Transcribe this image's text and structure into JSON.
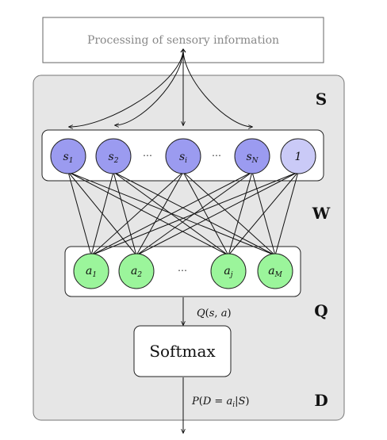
{
  "input_box": {
    "label": "Processing of sensory information"
  },
  "sections": {
    "s": "S",
    "w": "W",
    "q": "Q",
    "d": "D"
  },
  "state_nodes": [
    {
      "var": "s",
      "sub": "1",
      "kind": "state"
    },
    {
      "var": "s",
      "sub": "2",
      "kind": "state"
    },
    {
      "var": "s",
      "sub": "i",
      "kind": "state"
    },
    {
      "var": "s",
      "sub": "N",
      "kind": "state"
    },
    {
      "var": "1",
      "sub": "",
      "kind": "bias"
    }
  ],
  "action_nodes": [
    {
      "var": "a",
      "sub": "1"
    },
    {
      "var": "a",
      "sub": "2"
    },
    {
      "var": "a",
      "sub": "j"
    },
    {
      "var": "a",
      "sub": "M"
    }
  ],
  "ellipsis": "⋯",
  "softmax": {
    "label": "Softmax"
  },
  "q_label": "Q(s, a)",
  "p_label": "P(D = a_i|S)",
  "colors": {
    "state": "#9b9bf0",
    "bias": "#cacaf7",
    "action": "#9bf59b",
    "panel": "#e6e6e6",
    "panel_border": "#777777"
  }
}
